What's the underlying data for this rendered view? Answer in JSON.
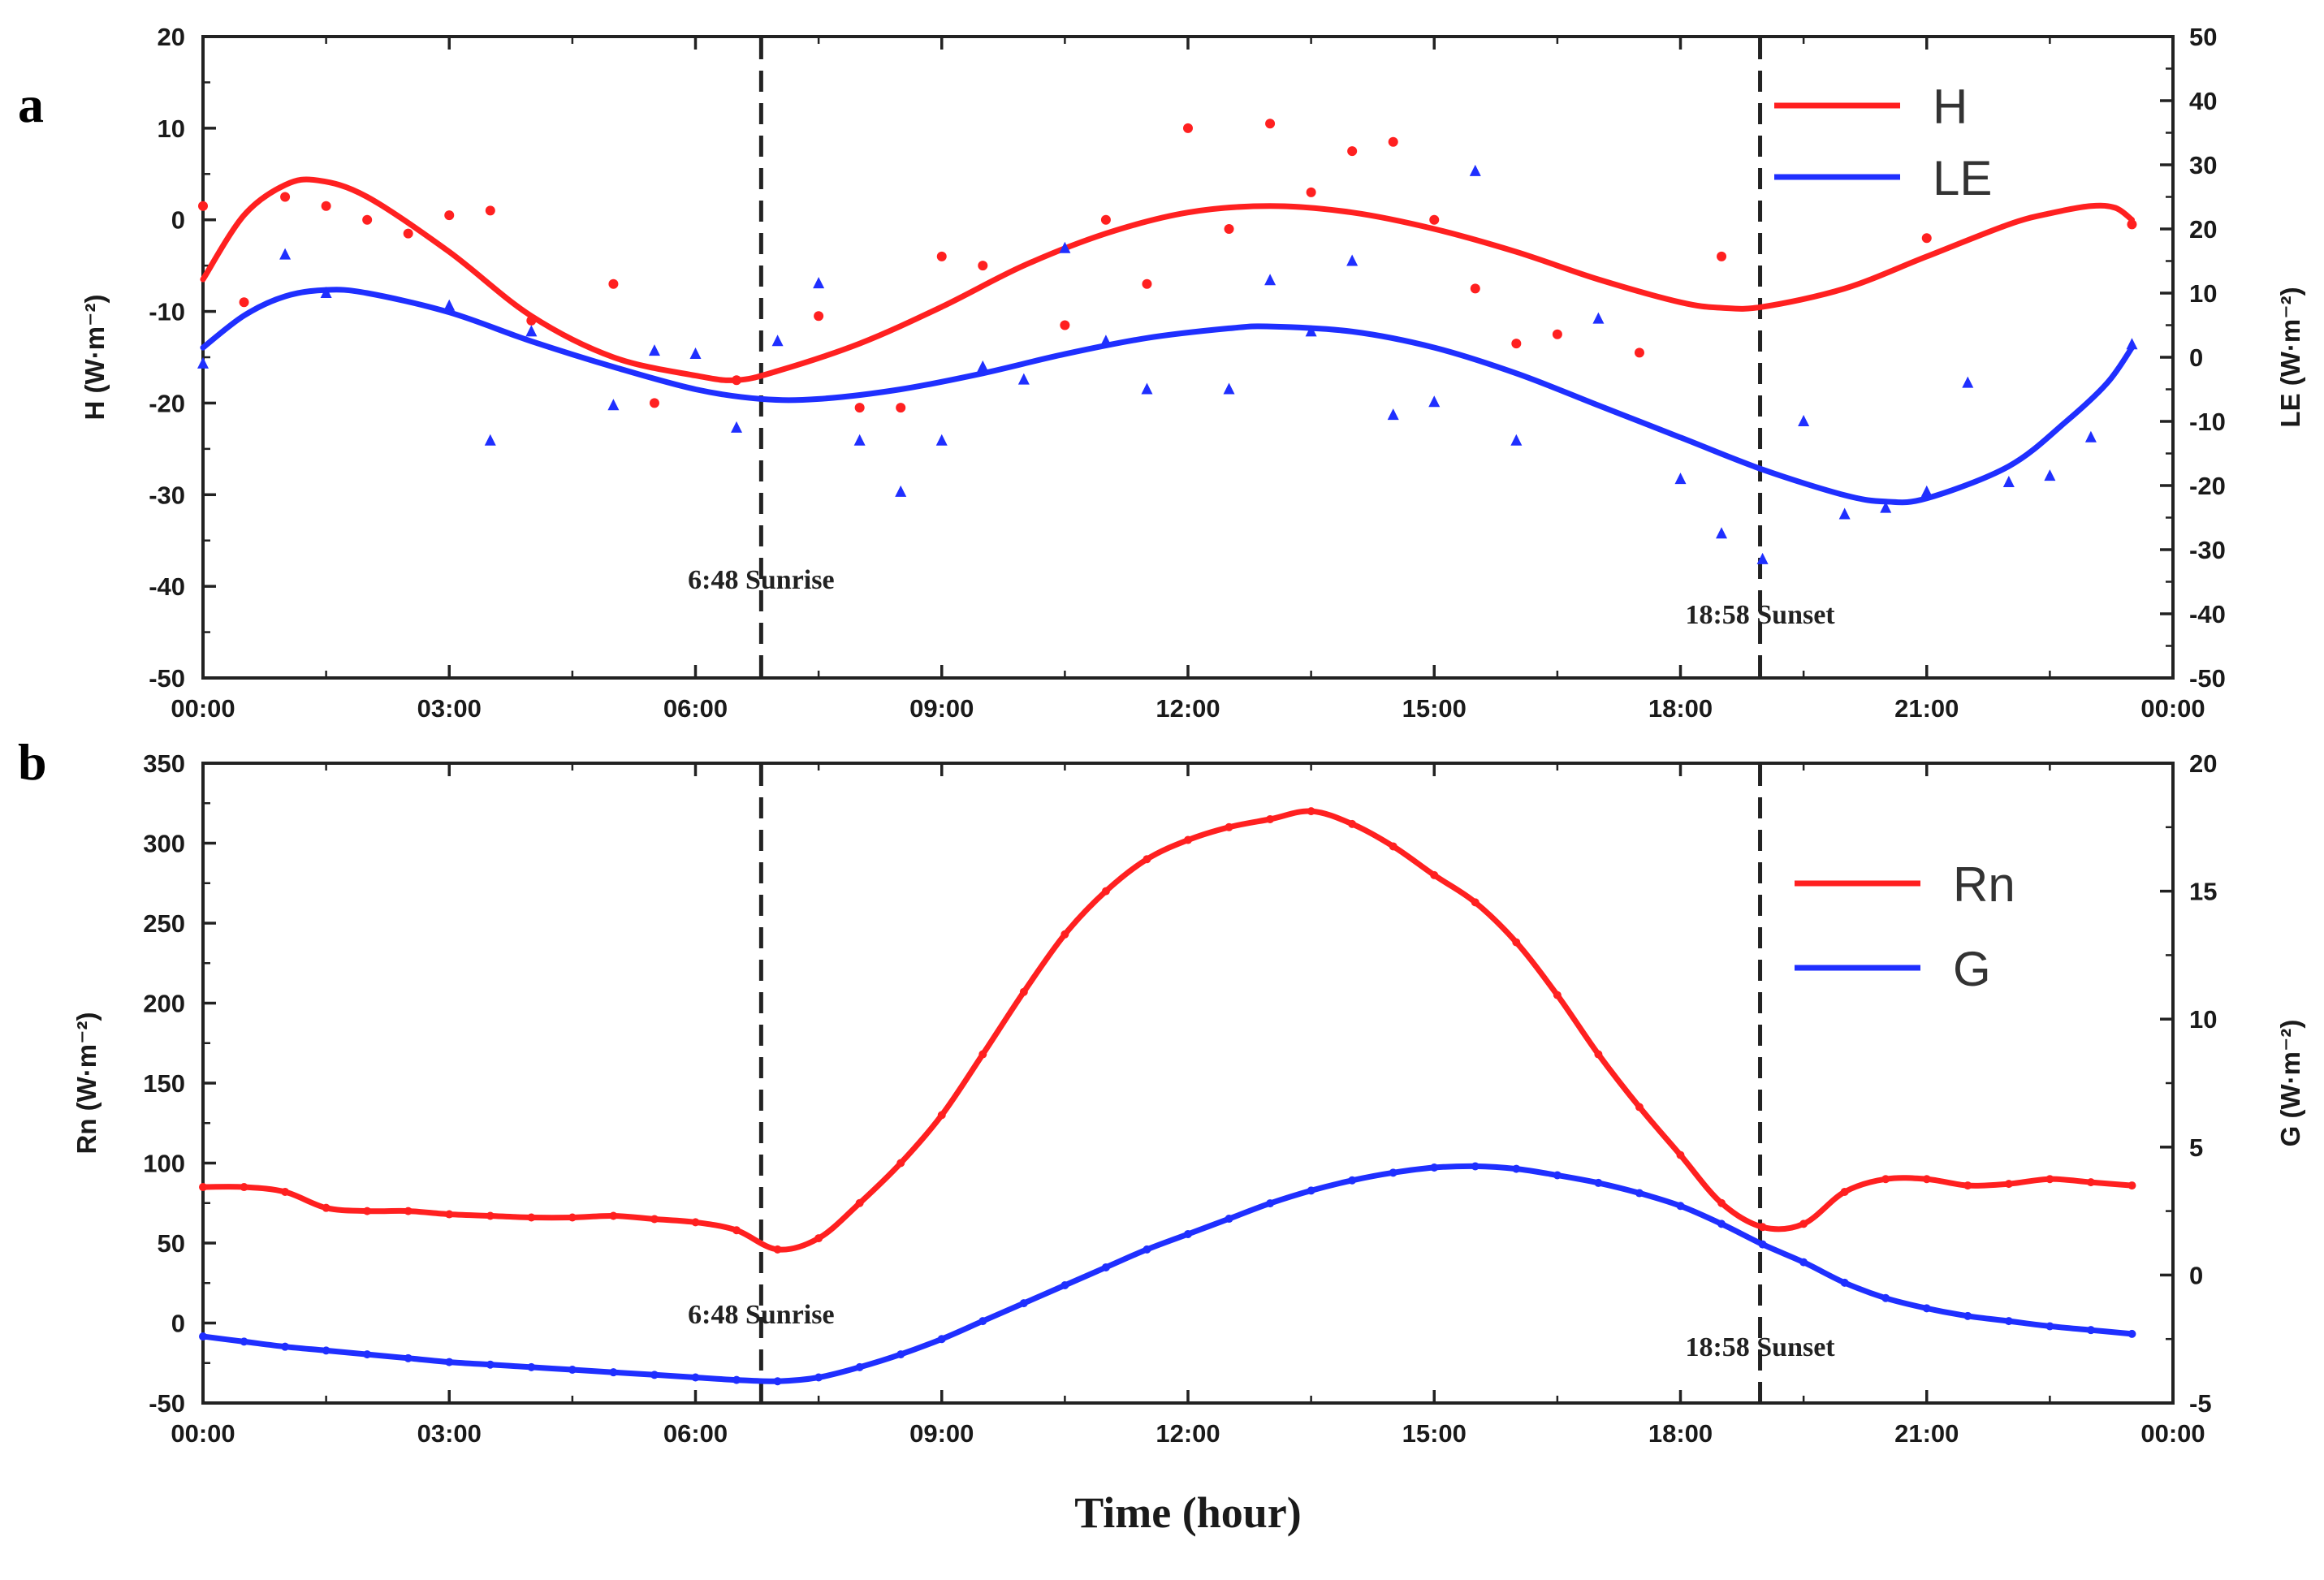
{
  "chart_data": [
    {
      "panel": "a",
      "type": "line+scatter",
      "xlabel": "",
      "x_tick_labels": [
        "00:00",
        "03:00",
        "06:00",
        "09:00",
        "12:00",
        "15:00",
        "18:00",
        "21:00",
        "00:00"
      ],
      "xlim": [
        0,
        24
      ],
      "left_axis": {
        "label": "H (W·m⁻²)",
        "ylim": [
          -50,
          20
        ],
        "ticks": [
          -50,
          -40,
          -30,
          -20,
          -10,
          0,
          10,
          20
        ]
      },
      "right_axis": {
        "label": "LE (W·m⁻²)",
        "ylim": [
          -50,
          50
        ],
        "ticks": [
          -50,
          -40,
          -30,
          -20,
          -10,
          0,
          10,
          20,
          30,
          40,
          50
        ]
      },
      "legend": [
        {
          "name": "H",
          "color": "#ff2020"
        },
        {
          "name": "LE",
          "color": "#1f2fff"
        }
      ],
      "annotations": [
        {
          "x": 6.8,
          "text": "6:48 Sunrise"
        },
        {
          "x": 18.97,
          "text": "18:58 Sunset"
        }
      ],
      "series": [
        {
          "name": "H",
          "axis": "left",
          "color": "#ff2020",
          "marker": "circle",
          "points": [
            [
              0,
              1.5
            ],
            [
              0.5,
              -9
            ],
            [
              1,
              2.5
            ],
            [
              1.5,
              1.5
            ],
            [
              2,
              0
            ],
            [
              2.5,
              -1.5
            ],
            [
              3,
              0.5
            ],
            [
              3.5,
              1
            ],
            [
              4,
              -11
            ],
            [
              5,
              -7
            ],
            [
              5.5,
              -20
            ],
            [
              6.5,
              -17.5
            ],
            [
              7.5,
              -10.5
            ],
            [
              8,
              -20.5
            ],
            [
              8.5,
              -20.5
            ],
            [
              9,
              -4
            ],
            [
              9.5,
              -5
            ],
            [
              10.5,
              -11.5
            ],
            [
              11,
              0
            ],
            [
              11.5,
              -7
            ],
            [
              12,
              10
            ],
            [
              12.5,
              -1
            ],
            [
              13,
              10.5
            ],
            [
              13.5,
              3
            ],
            [
              14,
              7.5
            ],
            [
              14.5,
              8.5
            ],
            [
              15,
              0
            ],
            [
              15.5,
              -7.5
            ],
            [
              16,
              -13.5
            ],
            [
              16.5,
              -12.5
            ],
            [
              17.5,
              -14.5
            ],
            [
              18.5,
              -4
            ],
            [
              21,
              -2
            ],
            [
              23.5,
              -0.5
            ]
          ],
          "fit": [
            [
              0,
              -6.5
            ],
            [
              0.5,
              0.5
            ],
            [
              1,
              3.8
            ],
            [
              1.4,
              4.3
            ],
            [
              2,
              2.5
            ],
            [
              3,
              -3.5
            ],
            [
              4,
              -10.5
            ],
            [
              5,
              -15
            ],
            [
              6,
              -17
            ],
            [
              6.5,
              -17.5
            ],
            [
              7,
              -16.5
            ],
            [
              8,
              -13.5
            ],
            [
              9,
              -9.5
            ],
            [
              10,
              -5
            ],
            [
              11,
              -1.5
            ],
            [
              12,
              0.8
            ],
            [
              13,
              1.5
            ],
            [
              14,
              0.8
            ],
            [
              15,
              -1
            ],
            [
              16,
              -3.5
            ],
            [
              17,
              -6.5
            ],
            [
              18,
              -9
            ],
            [
              18.5,
              -9.6
            ],
            [
              19,
              -9.5
            ],
            [
              20,
              -7.5
            ],
            [
              21,
              -4
            ],
            [
              22,
              -0.5
            ],
            [
              22.5,
              0.7
            ],
            [
              23,
              1.5
            ],
            [
              23.3,
              1.3
            ],
            [
              23.5,
              0
            ]
          ]
        },
        {
          "name": "LE",
          "axis": "right",
          "color": "#1f2fff",
          "marker": "triangle",
          "points": [
            [
              0,
              -1
            ],
            [
              1,
              16
            ],
            [
              1.5,
              10
            ],
            [
              3,
              8
            ],
            [
              3.5,
              -13
            ],
            [
              4,
              4
            ],
            [
              5,
              -7.5
            ],
            [
              5.5,
              1
            ],
            [
              6,
              0.5
            ],
            [
              6.5,
              -11
            ],
            [
              7,
              2.5
            ],
            [
              7.5,
              11.5
            ],
            [
              8,
              -13
            ],
            [
              8.5,
              -21
            ],
            [
              9,
              -13
            ],
            [
              9.5,
              -1.5
            ],
            [
              10,
              -3.5
            ],
            [
              10.5,
              17
            ],
            [
              11,
              2.5
            ],
            [
              11.5,
              -5
            ],
            [
              12.5,
              -5
            ],
            [
              13,
              12
            ],
            [
              13.5,
              4
            ],
            [
              14,
              15
            ],
            [
              14.5,
              -9
            ],
            [
              15,
              -7
            ],
            [
              15.5,
              29
            ],
            [
              16,
              -13
            ],
            [
              17,
              6
            ],
            [
              18,
              -19
            ],
            [
              18.5,
              -27.5
            ],
            [
              19,
              -31.5
            ],
            [
              19.5,
              -10
            ],
            [
              20,
              -24.5
            ],
            [
              20.5,
              -23.5
            ],
            [
              21,
              -21
            ],
            [
              21.5,
              -4
            ],
            [
              22,
              -19.5
            ],
            [
              22.5,
              -18.5
            ],
            [
              23,
              -12.5
            ],
            [
              23.5,
              2
            ]
          ],
          "fit": [
            [
              0,
              1.5
            ],
            [
              0.5,
              6.5
            ],
            [
              1,
              9.5
            ],
            [
              1.5,
              10.5
            ],
            [
              2,
              10
            ],
            [
              3,
              7
            ],
            [
              4,
              2.5
            ],
            [
              5,
              -1.5
            ],
            [
              6,
              -5
            ],
            [
              6.8,
              -6.5
            ],
            [
              7.5,
              -6.5
            ],
            [
              8.5,
              -5
            ],
            [
              9.5,
              -2.5
            ],
            [
              10.5,
              0.5
            ],
            [
              11.5,
              3
            ],
            [
              12.5,
              4.5
            ],
            [
              13,
              4.8
            ],
            [
              14,
              4
            ],
            [
              15,
              1.5
            ],
            [
              16,
              -2.5
            ],
            [
              17,
              -7.5
            ],
            [
              18,
              -12.5
            ],
            [
              19,
              -17.5
            ],
            [
              20,
              -21.5
            ],
            [
              20.5,
              -22.5
            ],
            [
              21,
              -22
            ],
            [
              22,
              -17
            ],
            [
              22.7,
              -10
            ],
            [
              23.2,
              -4
            ],
            [
              23.5,
              1.5
            ]
          ]
        }
      ]
    },
    {
      "panel": "b",
      "type": "line",
      "xlabel": "Time (hour)",
      "x_tick_labels": [
        "00:00",
        "03:00",
        "06:00",
        "09:00",
        "12:00",
        "15:00",
        "18:00",
        "21:00",
        "00:00"
      ],
      "xlim": [
        0,
        24
      ],
      "left_axis": {
        "label": "Rn (W·m⁻²)",
        "ylim": [
          -50,
          350
        ],
        "ticks": [
          -50,
          0,
          50,
          100,
          150,
          200,
          250,
          300,
          350
        ]
      },
      "right_axis": {
        "label": "G (W·m⁻²)",
        "ylim": [
          -5,
          20
        ],
        "ticks": [
          -5,
          0,
          5,
          10,
          15,
          20
        ]
      },
      "legend": [
        {
          "name": "Rn",
          "color": "#ff2020"
        },
        {
          "name": "G",
          "color": "#1f2fff"
        }
      ],
      "annotations": [
        {
          "x": 6.8,
          "text": "6:48 Sunrise"
        },
        {
          "x": 18.97,
          "text": "18:58 Sunset"
        }
      ],
      "series": [
        {
          "name": "Rn",
          "axis": "left",
          "color": "#ff2020",
          "values_x": [
            0,
            0.5,
            1,
            1.5,
            2,
            2.5,
            3,
            3.5,
            4,
            4.5,
            5,
            5.5,
            6,
            6.5,
            7,
            7.5,
            8,
            8.5,
            9,
            9.5,
            10,
            10.5,
            11,
            11.5,
            12,
            12.5,
            13,
            13.5,
            14,
            14.5,
            15,
            15.5,
            16,
            16.5,
            17,
            17.5,
            18,
            18.5,
            19,
            19.5,
            20,
            20.5,
            21,
            21.5,
            22,
            22.5,
            23,
            23.5
          ],
          "values_y": [
            85,
            85,
            82,
            72,
            70,
            70,
            68,
            67,
            66,
            66,
            67,
            65,
            63,
            58,
            46,
            53,
            75,
            100,
            130,
            168,
            207,
            243,
            270,
            290,
            302,
            310,
            315,
            320,
            312,
            298,
            280,
            263,
            238,
            205,
            168,
            135,
            105,
            75,
            60,
            62,
            82,
            90,
            90,
            86,
            87,
            90,
            88,
            86
          ]
        },
        {
          "name": "G",
          "axis": "right",
          "color": "#1f2fff",
          "values_x": [
            0,
            0.5,
            1,
            1.5,
            2,
            2.5,
            3,
            3.5,
            4,
            4.5,
            5,
            5.5,
            6,
            6.5,
            7,
            7.5,
            8,
            8.5,
            9,
            9.5,
            10,
            10.5,
            11,
            11.5,
            12,
            12.5,
            13,
            13.5,
            14,
            14.5,
            15,
            15.5,
            16,
            16.5,
            17,
            17.5,
            18,
            18.5,
            19,
            19.5,
            20,
            20.5,
            21,
            21.5,
            22,
            22.5,
            23,
            23.5
          ],
          "values_y": [
            -2.4,
            -2.6,
            -2.8,
            -2.95,
            -3.1,
            -3.25,
            -3.4,
            -3.5,
            -3.6,
            -3.7,
            -3.8,
            -3.9,
            -4.0,
            -4.1,
            -4.15,
            -4.0,
            -3.6,
            -3.1,
            -2.5,
            -1.8,
            -1.1,
            -0.4,
            0.3,
            1.0,
            1.6,
            2.2,
            2.8,
            3.3,
            3.7,
            4.0,
            4.2,
            4.25,
            4.15,
            3.9,
            3.6,
            3.2,
            2.7,
            2.0,
            1.2,
            0.5,
            -0.3,
            -0.9,
            -1.3,
            -1.6,
            -1.8,
            -2.0,
            -2.15,
            -2.3
          ]
        }
      ]
    }
  ]
}
